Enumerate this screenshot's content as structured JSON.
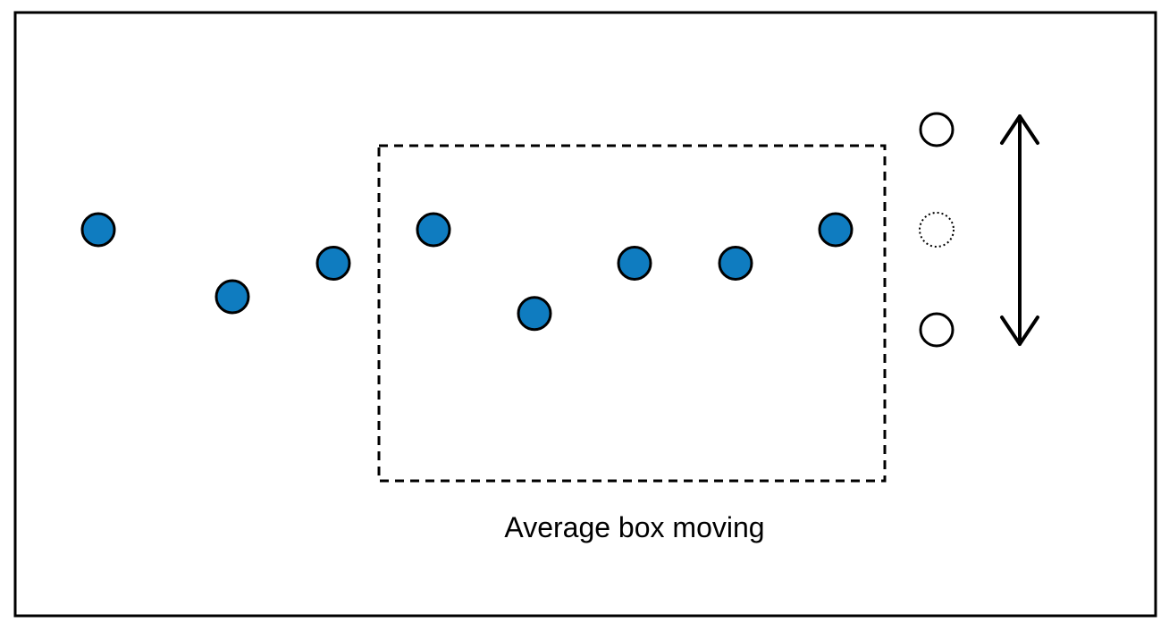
{
  "diagram": {
    "caption": "Average box moving",
    "colors": {
      "point_fill": "#0f7cc0",
      "stroke": "#000000",
      "background": "#ffffff"
    },
    "points": [
      {
        "name": "data-point-1",
        "level": 0
      },
      {
        "name": "data-point-2",
        "level": -2
      },
      {
        "name": "data-point-3",
        "level": -1
      },
      {
        "name": "data-point-4",
        "level": 0
      },
      {
        "name": "data-point-5",
        "level": -2.5
      },
      {
        "name": "data-point-6",
        "level": -1
      },
      {
        "name": "data-point-7",
        "level": -1
      },
      {
        "name": "data-point-8",
        "level": 0
      }
    ],
    "window_contains_points": [
      4,
      5,
      6,
      7,
      8
    ],
    "predicted_range": {
      "upper_level": 3,
      "center_level": 0,
      "lower_level": -3
    },
    "icons": [
      "double-headed-arrow-icon"
    ]
  }
}
